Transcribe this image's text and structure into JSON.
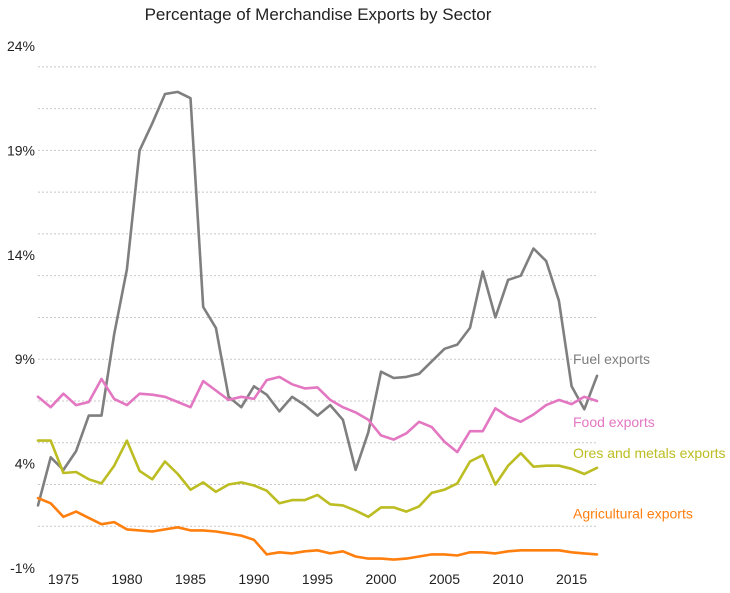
{
  "chart_data": {
    "type": "line",
    "title": "Percentage of Merchandise Exports by Sector",
    "xlabel": "",
    "ylabel": "",
    "xlim": [
      1973,
      2017
    ],
    "ylim": [
      -1,
      24
    ],
    "x_ticks": [
      1975,
      1980,
      1985,
      1990,
      1995,
      2000,
      2005,
      2010,
      2015
    ],
    "y_ticks": [
      -1,
      4,
      9,
      14,
      19,
      24
    ],
    "y_tick_labels": [
      "-1%",
      "4%",
      "9%",
      "14%",
      "19%",
      "24%"
    ],
    "grid": "horizontal dashed",
    "legend": "inline labels at right end of lines",
    "x": [
      1973,
      1974,
      1975,
      1976,
      1977,
      1978,
      1979,
      1980,
      1981,
      1982,
      1983,
      1984,
      1985,
      1986,
      1987,
      1988,
      1989,
      1990,
      1991,
      1992,
      1993,
      1994,
      1995,
      1996,
      1997,
      1998,
      1999,
      2000,
      2001,
      2002,
      2003,
      2004,
      2005,
      2006,
      2007,
      2008,
      2009,
      2010,
      2011,
      2012,
      2013,
      2014,
      2015,
      2016,
      2017
    ],
    "series": [
      {
        "name": "Fuel exports",
        "color": "#7f7f7f",
        "values": [
          2.0,
          4.3,
          3.7,
          4.6,
          6.3,
          6.3,
          10.2,
          13.3,
          19.0,
          20.3,
          21.7,
          21.8,
          21.5,
          11.5,
          10.5,
          7.2,
          6.7,
          7.7,
          7.3,
          6.5,
          7.2,
          6.8,
          6.3,
          6.8,
          6.1,
          3.7,
          5.5,
          8.4,
          8.1,
          8.15,
          8.3,
          8.9,
          9.5,
          9.7,
          10.5,
          13.2,
          11.0,
          12.8,
          13.0,
          14.3,
          13.7,
          11.8,
          7.7,
          6.6,
          8.2
        ]
      },
      {
        "name": "Food exports",
        "color": "#e377c2",
        "values": [
          7.2,
          6.7,
          7.35,
          6.8,
          6.95,
          8.05,
          7.1,
          6.8,
          7.35,
          7.3,
          7.2,
          6.95,
          6.7,
          7.95,
          7.5,
          7.05,
          7.2,
          7.1,
          8.0,
          8.15,
          7.8,
          7.6,
          7.65,
          7.05,
          6.7,
          6.45,
          6.1,
          5.35,
          5.15,
          5.45,
          6.0,
          5.75,
          5.05,
          4.55,
          5.55,
          5.55,
          6.65,
          6.25,
          6.0,
          6.35,
          6.8,
          7.05,
          6.85,
          7.2,
          7.0
        ]
      },
      {
        "name": "Ores and metals exports",
        "color": "#bcbd22",
        "values": [
          5.1,
          5.1,
          3.55,
          3.6,
          3.25,
          3.05,
          3.9,
          5.1,
          3.65,
          3.25,
          4.1,
          3.5,
          2.75,
          3.1,
          2.65,
          3.0,
          3.1,
          2.95,
          2.7,
          2.1,
          2.25,
          2.25,
          2.5,
          2.05,
          2.0,
          1.75,
          1.45,
          1.9,
          1.9,
          1.7,
          1.95,
          2.6,
          2.75,
          3.05,
          4.1,
          4.4,
          3.0,
          3.9,
          4.5,
          3.85,
          3.9,
          3.9,
          3.75,
          3.5,
          3.8
        ]
      },
      {
        "name": "Agricultural exports",
        "color": "#ff7f0e",
        "values": [
          2.35,
          2.1,
          1.45,
          1.7,
          1.4,
          1.1,
          1.2,
          0.85,
          0.8,
          0.75,
          0.85,
          0.95,
          0.8,
          0.8,
          0.75,
          0.65,
          0.55,
          0.35,
          -0.35,
          -0.25,
          -0.3,
          -0.2,
          -0.15,
          -0.3,
          -0.2,
          -0.45,
          -0.55,
          -0.55,
          -0.6,
          -0.55,
          -0.45,
          -0.35,
          -0.35,
          -0.4,
          -0.25,
          -0.25,
          -0.3,
          -0.2,
          -0.15,
          -0.15,
          -0.15,
          -0.15,
          -0.25,
          -0.3,
          -0.35
        ]
      }
    ]
  }
}
